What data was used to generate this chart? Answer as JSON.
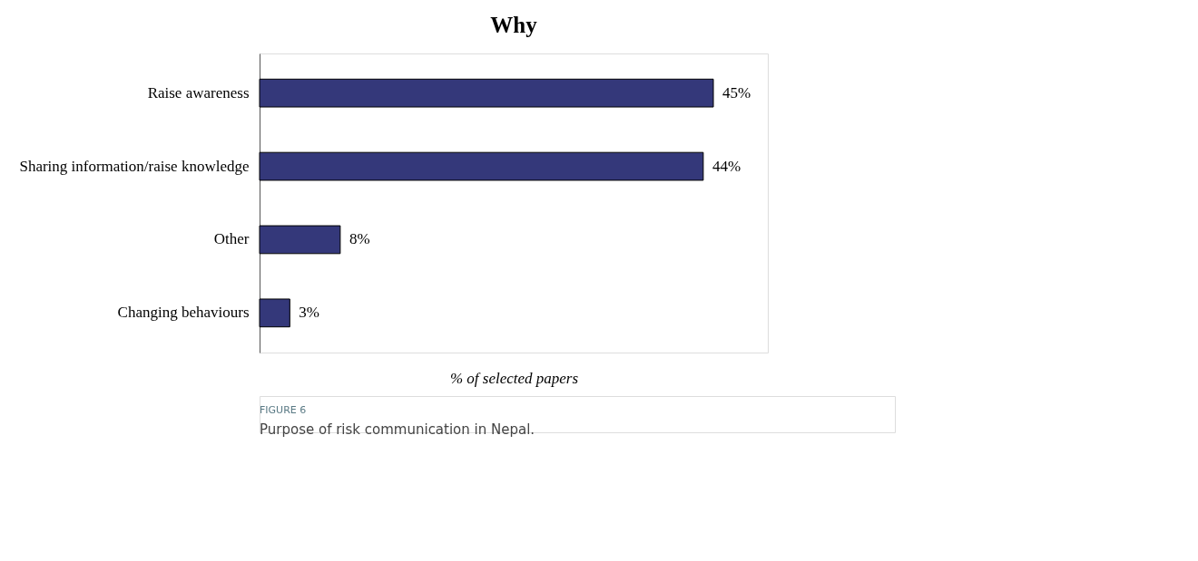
{
  "chart_data": {
    "type": "bar",
    "orientation": "horizontal",
    "title": "Why",
    "xlabel": "% of selected papers",
    "categories": [
      "Raise awareness",
      "Sharing information/raise knowledge",
      "Other",
      "Changing behaviours"
    ],
    "values": [
      45,
      44,
      8,
      3
    ],
    "color": "#34387a",
    "value_labels": [
      "45%",
      "44%",
      "8%",
      "3%"
    ],
    "tick_labels": "y",
    "grid": false,
    "annotations": [
      "FIGURE 6",
      "Purpose of risk communication in Nepal."
    ]
  }
}
